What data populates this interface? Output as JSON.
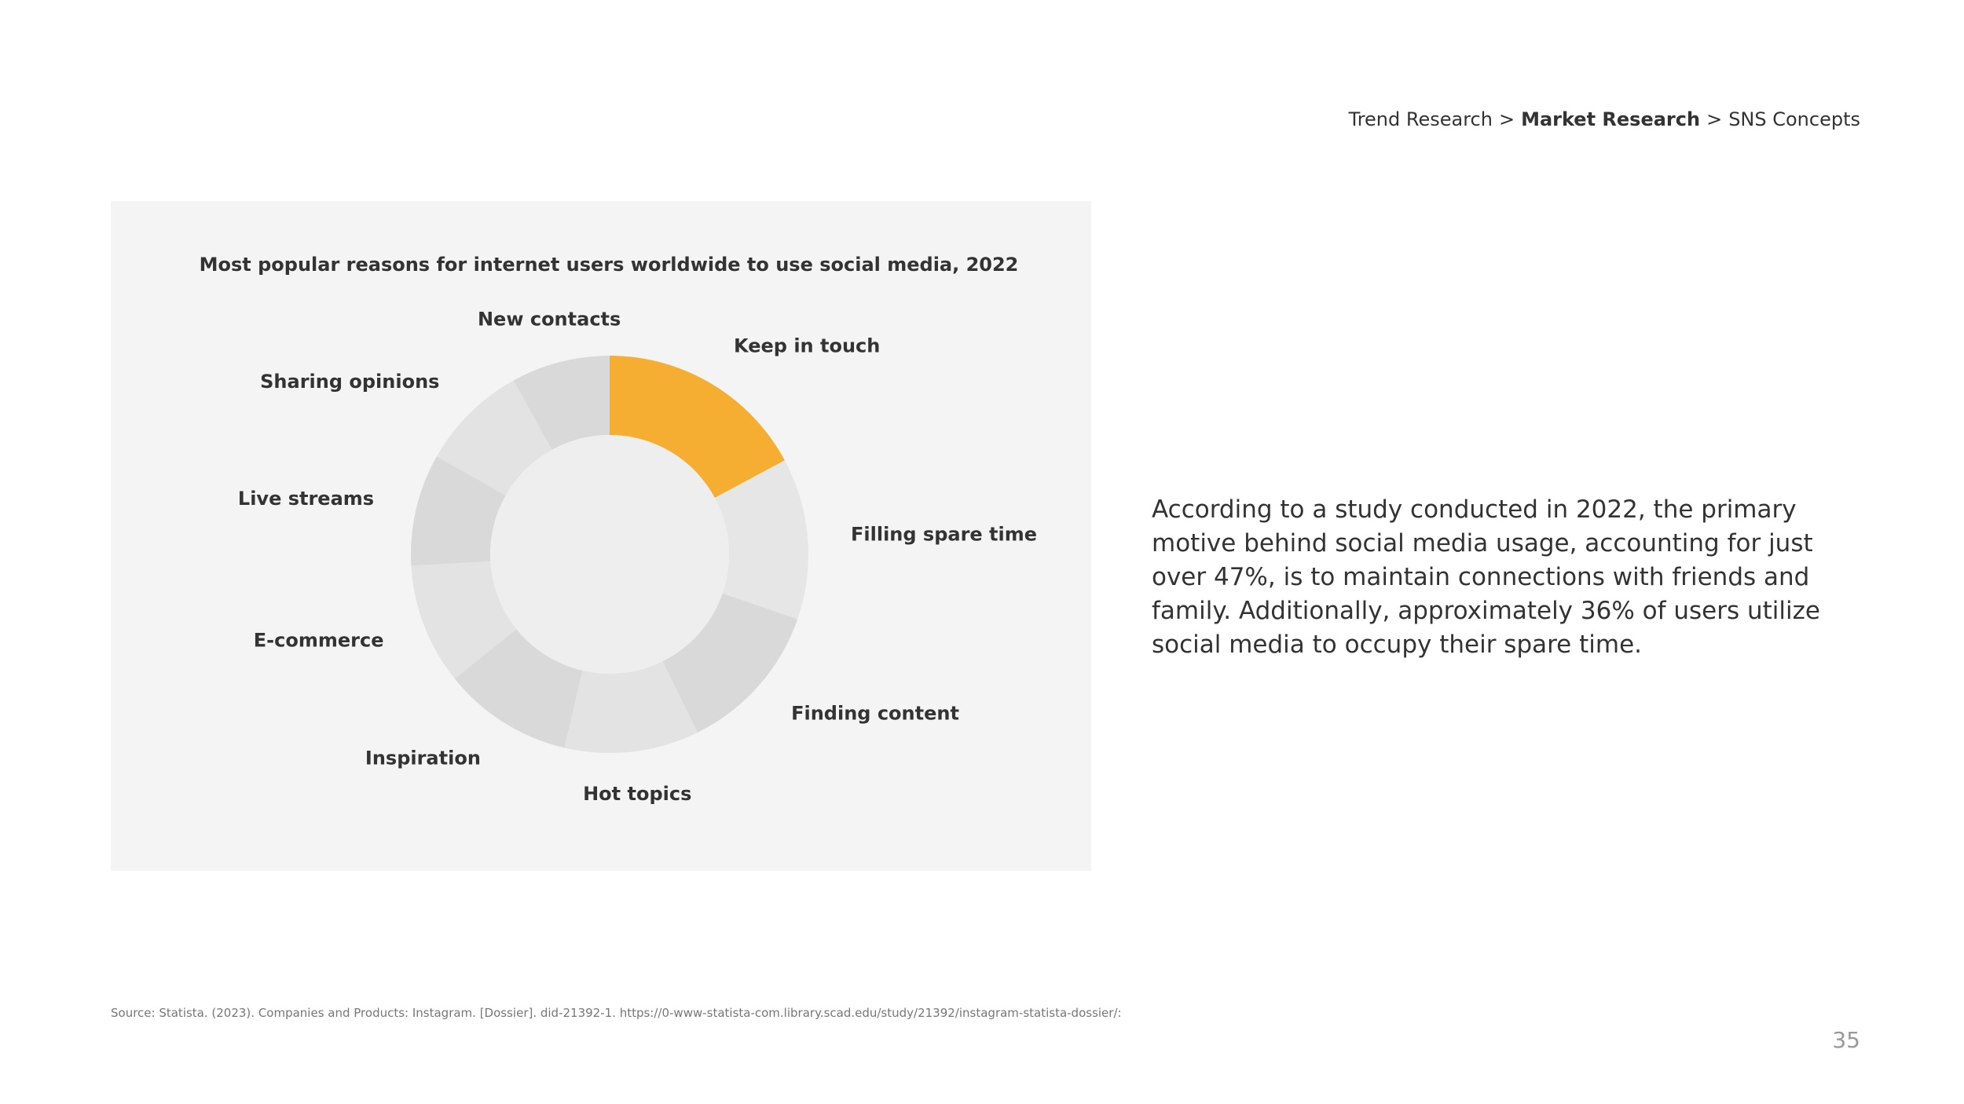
{
  "header": {
    "breadcrumb": [
      "Trend Research",
      ">",
      "Market Research",
      ">",
      "SNS Concepts"
    ]
  },
  "chart_data": {
    "type": "donut",
    "title": "Most popular reasons for internet users worldwide to use social media, 2022",
    "categories": [
      "Keep in touch",
      "Filling spare time",
      "Finding content",
      "Hot topics",
      "Inspiration",
      "E-commerce",
      "Live streams",
      "Sharing opinions",
      "New contacts"
    ],
    "values": [
      47,
      36,
      34,
      30,
      29,
      27,
      25,
      24,
      22
    ],
    "colors": [
      "#f5ae31",
      "#e6e6e6",
      "#d9d9d9",
      "#e3e3e3",
      "#d9d9d9",
      "#e3e3e3",
      "#d9d9d9",
      "#e3e3e3",
      "#d9d9d9"
    ]
  },
  "body": {
    "text": "According to a study conducted in 2022, the primary motive behind social media usage, accounting for just over 47%, is to maintain connections with friends and family. Additionally, approximately 36% of users utilize social media to occupy their spare time."
  },
  "footer": {
    "source": "Source: Statista. (2023). Companies and Products: Instagram. [Dossier]. did-21392-1. https://0-www-statista-com.library.scad.edu/study/21392/instagram-statista-dossier/:",
    "page_number": "35"
  }
}
